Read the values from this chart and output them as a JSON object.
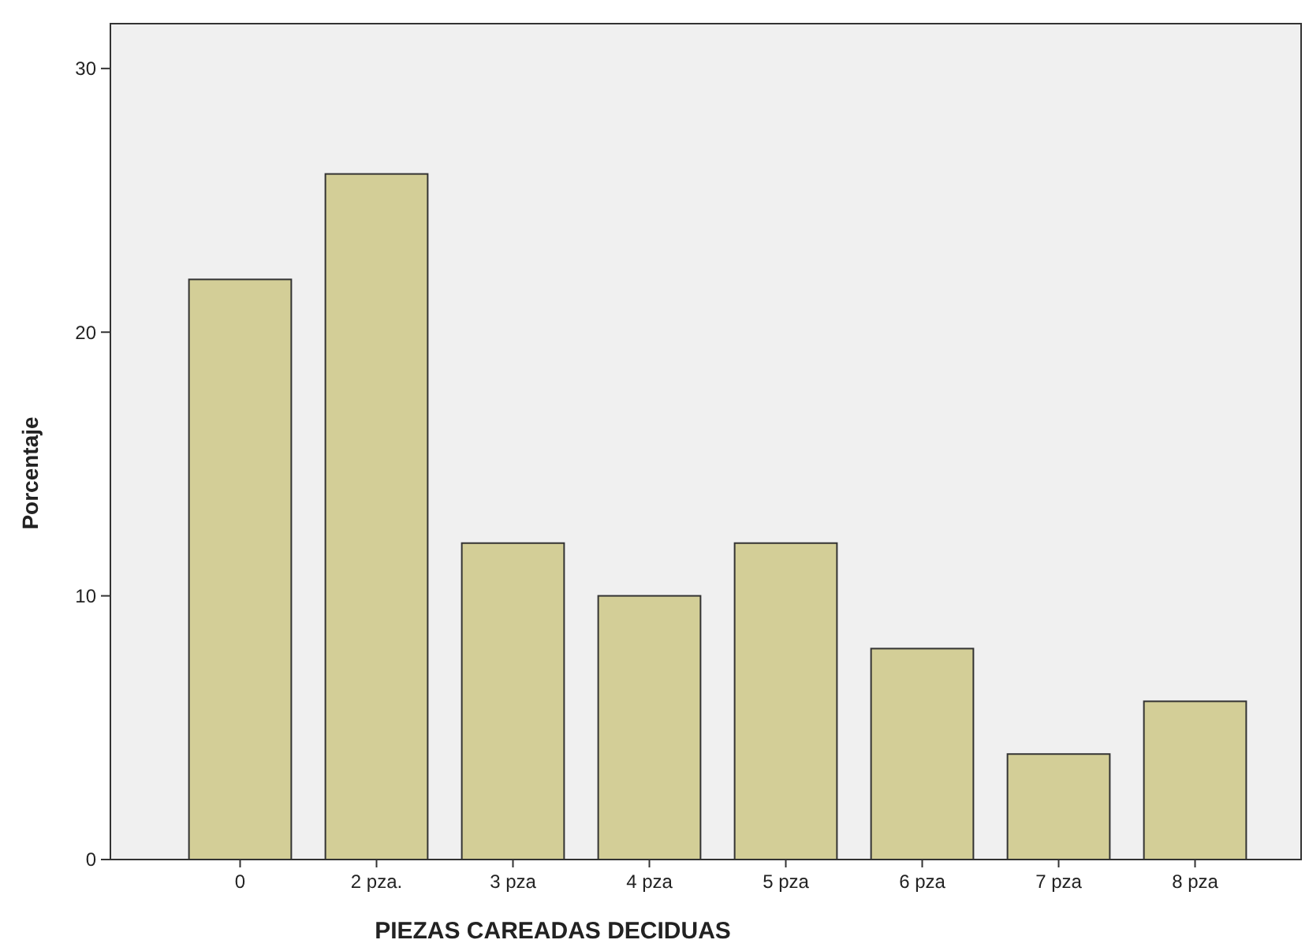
{
  "chart_data": {
    "type": "bar",
    "xlabel": "PIEZAS CAREADAS DECIDUAS",
    "ylabel": "Porcentaje",
    "categories": [
      "0",
      "2 pza.",
      "3 pza",
      "4 pza",
      "5 pza",
      "6 pza",
      "7 pza",
      "8 pza"
    ],
    "values": [
      22,
      26,
      12,
      10,
      12,
      8,
      4,
      6
    ],
    "color": "#d3ce97",
    "ylim": [
      0,
      31.7
    ],
    "yticks": [
      0,
      10,
      20,
      30
    ],
    "grid": false
  }
}
